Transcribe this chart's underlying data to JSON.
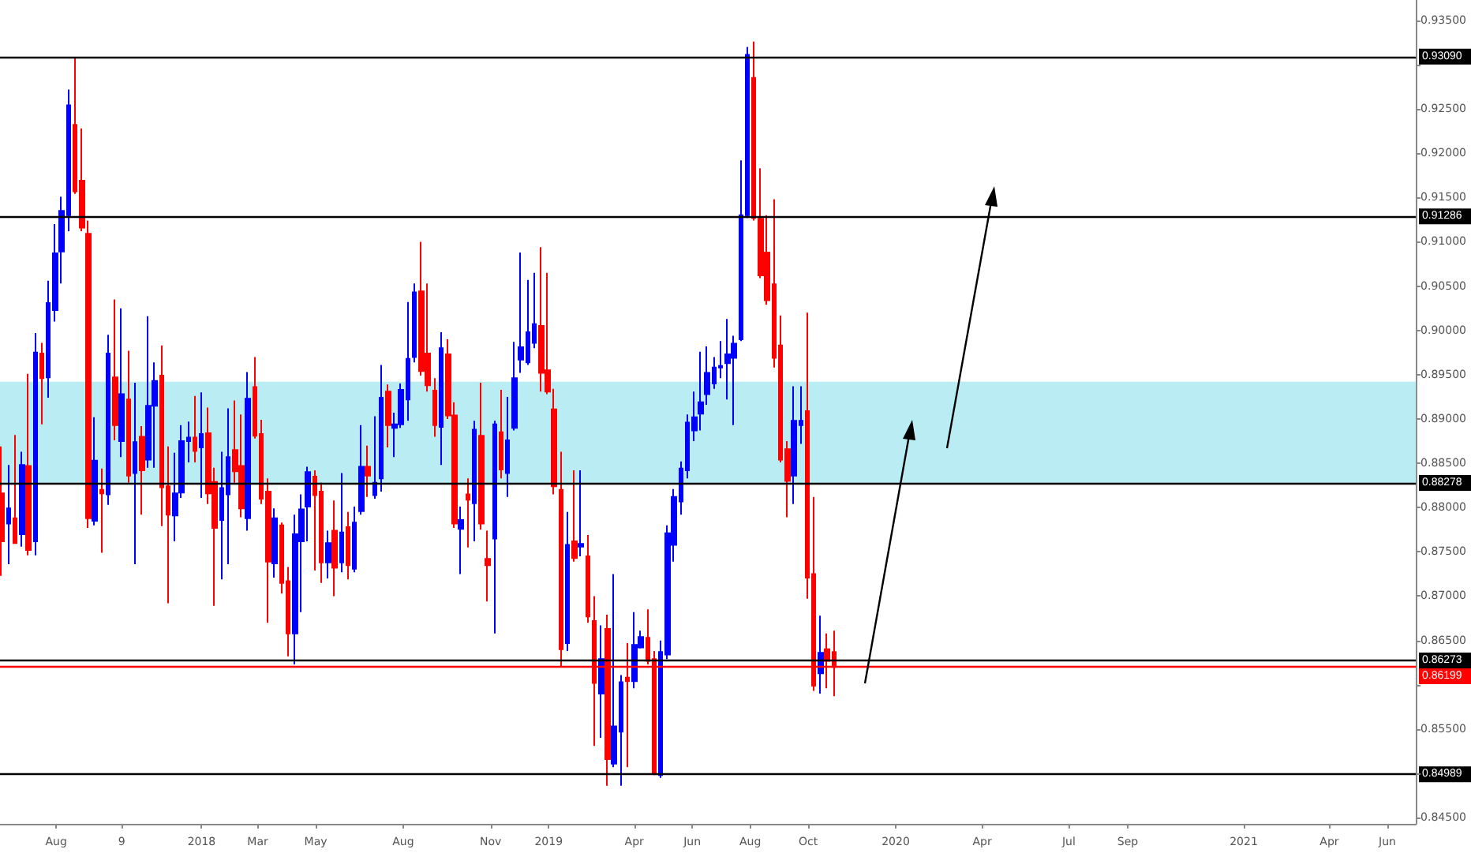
{
  "chart_data": {
    "type": "candlestick",
    "x": [
      "2017-06-05",
      "2017-06-12",
      "2017-06-19",
      "2017-06-26",
      "2017-07-03",
      "2017-07-10",
      "2017-07-17",
      "2017-07-24",
      "2017-07-31",
      "2017-08-07",
      "2017-08-14",
      "2017-08-21",
      "2017-08-28",
      "2017-09-04",
      "2017-09-11",
      "2017-09-18",
      "2017-09-25",
      "2017-10-02",
      "2017-10-09",
      "2017-10-16",
      "2017-10-23",
      "2017-10-30",
      "2017-11-06",
      "2017-11-13",
      "2017-11-20",
      "2017-11-27",
      "2017-12-04",
      "2017-12-11",
      "2017-12-18",
      "2017-12-25",
      "2018-01-01",
      "2018-01-08",
      "2018-01-15",
      "2018-01-22",
      "2018-01-29",
      "2018-02-05",
      "2018-02-12",
      "2018-02-19",
      "2018-02-26",
      "2018-03-05",
      "2018-03-12",
      "2018-03-19",
      "2018-03-26",
      "2018-04-02",
      "2018-04-09",
      "2018-04-16",
      "2018-04-23",
      "2018-04-30",
      "2018-05-07",
      "2018-05-14",
      "2018-05-21",
      "2018-05-28",
      "2018-06-04",
      "2018-06-11",
      "2018-06-18",
      "2018-06-25",
      "2018-07-02",
      "2018-07-09",
      "2018-07-16",
      "2018-07-23",
      "2018-07-30",
      "2018-08-06",
      "2018-08-13",
      "2018-08-20",
      "2018-08-27",
      "2018-09-03",
      "2018-09-10",
      "2018-09-17",
      "2018-09-24",
      "2018-10-01",
      "2018-10-08",
      "2018-10-15",
      "2018-10-22",
      "2018-10-29",
      "2018-11-05",
      "2018-11-12",
      "2018-11-19",
      "2018-11-26",
      "2018-12-03",
      "2018-12-10",
      "2018-12-17",
      "2018-12-24",
      "2018-12-31",
      "2019-01-07",
      "2019-01-14",
      "2019-01-21",
      "2019-01-28",
      "2019-02-04",
      "2019-02-11",
      "2019-02-18",
      "2019-02-25",
      "2019-03-04",
      "2019-03-11",
      "2019-03-18",
      "2019-03-25",
      "2019-04-01",
      "2019-04-08",
      "2019-04-15",
      "2019-04-22",
      "2019-04-29",
      "2019-05-06",
      "2019-05-13",
      "2019-05-20",
      "2019-05-27",
      "2019-06-03",
      "2019-06-10",
      "2019-06-17",
      "2019-06-24",
      "2019-07-01",
      "2019-07-08",
      "2019-07-15",
      "2019-07-22",
      "2019-07-29",
      "2019-08-05",
      "2019-08-12",
      "2019-08-19",
      "2019-08-26",
      "2019-09-02",
      "2019-09-09",
      "2019-09-16",
      "2019-09-23",
      "2019-09-30",
      "2019-10-07",
      "2019-10-14",
      "2019-10-21",
      "2019-10-28"
    ],
    "ohlc": [
      [
        0.8816,
        0.8869,
        0.8723,
        0.8762
      ],
      [
        0.8782,
        0.8848,
        0.8736,
        0.8799
      ],
      [
        0.8788,
        0.8882,
        0.8759,
        0.876
      ],
      [
        0.877,
        0.8863,
        0.8756,
        0.8848
      ],
      [
        0.8847,
        0.8951,
        0.8746,
        0.8752
      ],
      [
        0.8762,
        0.8997,
        0.8746,
        0.8975
      ],
      [
        0.8974,
        0.8986,
        0.8894,
        0.8946
      ],
      [
        0.8947,
        0.9056,
        0.8924,
        0.9031
      ],
      [
        0.9023,
        0.912,
        0.901,
        0.9087
      ],
      [
        0.9089,
        0.9151,
        0.9053,
        0.9135
      ],
      [
        0.913,
        0.9272,
        0.9112,
        0.9254
      ],
      [
        0.9232,
        0.9308,
        0.9154,
        0.9157
      ],
      [
        0.9169,
        0.9228,
        0.9112,
        0.9116
      ],
      [
        0.9109,
        0.9124,
        0.8777,
        0.8788
      ],
      [
        0.8785,
        0.8902,
        0.878,
        0.8853
      ],
      [
        0.882,
        0.8844,
        0.8749,
        0.8816
      ],
      [
        0.8815,
        0.8995,
        0.8803,
        0.8974
      ],
      [
        0.8947,
        0.9035,
        0.8876,
        0.8893
      ],
      [
        0.8875,
        0.9025,
        0.8857,
        0.8928
      ],
      [
        0.8922,
        0.8977,
        0.8828,
        0.8836
      ],
      [
        0.8839,
        0.8941,
        0.8736,
        0.8874
      ],
      [
        0.888,
        0.8892,
        0.8792,
        0.8842
      ],
      [
        0.8854,
        0.9016,
        0.8845,
        0.8915
      ],
      [
        0.8915,
        0.8964,
        0.8845,
        0.8943
      ],
      [
        0.8949,
        0.8983,
        0.8779,
        0.8823
      ],
      [
        0.8824,
        0.8869,
        0.8692,
        0.8792
      ],
      [
        0.8791,
        0.8862,
        0.8762,
        0.8816
      ],
      [
        0.8817,
        0.8893,
        0.8811,
        0.8875
      ],
      [
        0.8875,
        0.8897,
        0.8851,
        0.8879
      ],
      [
        0.8879,
        0.8926,
        0.8851,
        0.8864
      ],
      [
        0.8868,
        0.893,
        0.8811,
        0.8883
      ],
      [
        0.8884,
        0.8913,
        0.8804,
        0.8816
      ],
      [
        0.8829,
        0.8845,
        0.8689,
        0.8777
      ],
      [
        0.8786,
        0.8863,
        0.8719,
        0.8822
      ],
      [
        0.8815,
        0.8912,
        0.8736,
        0.8857
      ],
      [
        0.8865,
        0.8921,
        0.8828,
        0.8841
      ],
      [
        0.8847,
        0.8905,
        0.8789,
        0.8799
      ],
      [
        0.8788,
        0.8953,
        0.8774,
        0.8923
      ],
      [
        0.8936,
        0.897,
        0.8878,
        0.8881
      ],
      [
        0.8883,
        0.8899,
        0.8804,
        0.881
      ],
      [
        0.8818,
        0.8833,
        0.867,
        0.8739
      ],
      [
        0.8737,
        0.8799,
        0.8721,
        0.8788
      ],
      [
        0.878,
        0.8783,
        0.8703,
        0.8715
      ],
      [
        0.8717,
        0.8733,
        0.8632,
        0.8658
      ],
      [
        0.8658,
        0.8792,
        0.8623,
        0.877
      ],
      [
        0.8762,
        0.8815,
        0.8682,
        0.8798
      ],
      [
        0.8801,
        0.8846,
        0.8762,
        0.884
      ],
      [
        0.8835,
        0.8842,
        0.8729,
        0.8814
      ],
      [
        0.8818,
        0.8828,
        0.8715,
        0.8738
      ],
      [
        0.8738,
        0.8774,
        0.872,
        0.876
      ],
      [
        0.8774,
        0.8808,
        0.87,
        0.8732
      ],
      [
        0.8738,
        0.8839,
        0.8727,
        0.8772
      ],
      [
        0.8778,
        0.8795,
        0.8719,
        0.8735
      ],
      [
        0.8731,
        0.8801,
        0.8727,
        0.8783
      ],
      [
        0.8796,
        0.8893,
        0.8792,
        0.8846
      ],
      [
        0.8846,
        0.887,
        0.8812,
        0.8836
      ],
      [
        0.8814,
        0.8903,
        0.881,
        0.8828
      ],
      [
        0.8833,
        0.8961,
        0.8818,
        0.8924
      ],
      [
        0.8931,
        0.8939,
        0.8868,
        0.8893
      ],
      [
        0.889,
        0.8907,
        0.8857,
        0.8894
      ],
      [
        0.8894,
        0.894,
        0.889,
        0.8933
      ],
      [
        0.8922,
        0.9032,
        0.8898,
        0.8968
      ],
      [
        0.897,
        0.9053,
        0.8964,
        0.9043
      ],
      [
        0.9044,
        0.91,
        0.8949,
        0.8954
      ],
      [
        0.8974,
        0.9053,
        0.8931,
        0.8938
      ],
      [
        0.8932,
        0.8946,
        0.888,
        0.8893
      ],
      [
        0.8891,
        0.8998,
        0.8848,
        0.898
      ],
      [
        0.8973,
        0.899,
        0.89,
        0.8904
      ],
      [
        0.8904,
        0.8919,
        0.8777,
        0.8782
      ],
      [
        0.8776,
        0.8801,
        0.8725,
        0.8786
      ],
      [
        0.8815,
        0.8833,
        0.8755,
        0.8809
      ],
      [
        0.8805,
        0.8898,
        0.8762,
        0.8888
      ],
      [
        0.8881,
        0.8941,
        0.8775,
        0.8782
      ],
      [
        0.8742,
        0.8774,
        0.8694,
        0.8735
      ],
      [
        0.8765,
        0.8898,
        0.8658,
        0.8894
      ],
      [
        0.8885,
        0.8933,
        0.8833,
        0.8843
      ],
      [
        0.8839,
        0.8925,
        0.8812,
        0.8876
      ],
      [
        0.889,
        0.8987,
        0.8887,
        0.8946
      ],
      [
        0.8967,
        0.9088,
        0.8952,
        0.8981
      ],
      [
        0.8964,
        0.9057,
        0.8961,
        0.8998
      ],
      [
        0.8986,
        0.9065,
        0.898,
        0.9007
      ],
      [
        0.9005,
        0.9094,
        0.8931,
        0.8952
      ],
      [
        0.8955,
        0.9065,
        0.8928,
        0.8931
      ],
      [
        0.8911,
        0.8934,
        0.8815,
        0.8824
      ],
      [
        0.882,
        0.8863,
        0.862,
        0.864
      ],
      [
        0.8647,
        0.8795,
        0.8638,
        0.8758
      ],
      [
        0.8762,
        0.8842,
        0.8739,
        0.8743
      ],
      [
        0.8756,
        0.8842,
        0.8745,
        0.8759
      ],
      [
        0.8745,
        0.8769,
        0.867,
        0.8677
      ],
      [
        0.8672,
        0.87,
        0.8531,
        0.8602
      ],
      [
        0.859,
        0.8667,
        0.854,
        0.8629
      ],
      [
        0.8663,
        0.8679,
        0.8486,
        0.8516
      ],
      [
        0.8511,
        0.8725,
        0.8507,
        0.8553
      ],
      [
        0.8547,
        0.8611,
        0.8486,
        0.8603
      ],
      [
        0.8608,
        0.8647,
        0.8507,
        0.8604
      ],
      [
        0.8604,
        0.8682,
        0.8596,
        0.8645
      ],
      [
        0.8642,
        0.8661,
        0.8641,
        0.8654
      ],
      [
        0.8653,
        0.8685,
        0.8623,
        0.8627
      ],
      [
        0.8629,
        0.8638,
        0.8498,
        0.8501
      ],
      [
        0.8498,
        0.865,
        0.8495,
        0.8637
      ],
      [
        0.8634,
        0.878,
        0.8629,
        0.8771
      ],
      [
        0.8758,
        0.8821,
        0.8739,
        0.8812
      ],
      [
        0.8807,
        0.8852,
        0.8792,
        0.8844
      ],
      [
        0.8842,
        0.8905,
        0.8833,
        0.8896
      ],
      [
        0.8887,
        0.8931,
        0.8875,
        0.8902
      ],
      [
        0.8906,
        0.8976,
        0.8887,
        0.8919
      ],
      [
        0.8928,
        0.8982,
        0.8916,
        0.8952
      ],
      [
        0.894,
        0.897,
        0.8934,
        0.8958
      ],
      [
        0.8958,
        0.8988,
        0.8946,
        0.896
      ],
      [
        0.8963,
        0.9013,
        0.8922,
        0.8973
      ],
      [
        0.8969,
        0.8994,
        0.8893,
        0.8985
      ],
      [
        0.899,
        0.9192,
        0.8988,
        0.913
      ],
      [
        0.913,
        0.932,
        0.9127,
        0.9311
      ],
      [
        0.9285,
        0.9326,
        0.9124,
        0.9127
      ],
      [
        0.9126,
        0.9183,
        0.9059,
        0.9062
      ],
      [
        0.9088,
        0.913,
        0.9029,
        0.9034
      ],
      [
        0.9052,
        0.9148,
        0.8958,
        0.8969
      ],
      [
        0.8983,
        0.9017,
        0.8851,
        0.8854
      ],
      [
        0.8866,
        0.8875,
        0.8789,
        0.883
      ],
      [
        0.8836,
        0.8937,
        0.8804,
        0.8898
      ],
      [
        0.8893,
        0.8937,
        0.8872,
        0.8898
      ],
      [
        0.8909,
        0.902,
        0.8697,
        0.8721
      ],
      [
        0.8725,
        0.8812,
        0.8593,
        0.8599
      ],
      [
        0.8613,
        0.8678,
        0.859,
        0.8636
      ],
      [
        0.864,
        0.8658,
        0.8596,
        0.8627
      ],
      [
        0.8637,
        0.8661,
        0.8587,
        0.862
      ]
    ],
    "colors": [
      "#ff0000",
      "#0000ff",
      "#ff0000",
      "#0000ff",
      "#ff0000",
      "#0000ff",
      "#ff0000",
      "#0000ff",
      "#0000ff",
      "#0000ff",
      "#0000ff",
      "#ff0000",
      "#ff0000",
      "#ff0000",
      "#0000ff",
      "#ff0000",
      "#0000ff",
      "#ff0000",
      "#0000ff",
      "#ff0000",
      "#0000ff",
      "#ff0000",
      "#0000ff",
      "#0000ff",
      "#ff0000",
      "#ff0000",
      "#0000ff",
      "#0000ff",
      "#0000ff",
      "#ff0000",
      "#0000ff",
      "#ff0000",
      "#ff0000",
      "#0000ff",
      "#0000ff",
      "#ff0000",
      "#ff0000",
      "#0000ff",
      "#ff0000",
      "#ff0000",
      "#ff0000",
      "#0000ff",
      "#ff0000",
      "#ff0000",
      "#0000ff",
      "#0000ff",
      "#0000ff",
      "#ff0000",
      "#ff0000",
      "#0000ff",
      "#ff0000",
      "#0000ff",
      "#ff0000",
      "#0000ff",
      "#0000ff",
      "#ff0000",
      "#0000ff",
      "#0000ff",
      "#ff0000",
      "#0000ff",
      "#0000ff",
      "#0000ff",
      "#0000ff",
      "#ff0000",
      "#ff0000",
      "#ff0000",
      "#0000ff",
      "#ff0000",
      "#ff0000",
      "#0000ff",
      "#ff0000",
      "#0000ff",
      "#ff0000",
      "#ff0000",
      "#0000ff",
      "#ff0000",
      "#0000ff",
      "#0000ff",
      "#0000ff",
      "#0000ff",
      "#0000ff",
      "#ff0000",
      "#ff0000",
      "#ff0000",
      "#ff0000",
      "#0000ff",
      "#ff0000",
      "#0000ff",
      "#ff0000",
      "#ff0000",
      "#0000ff",
      "#ff0000",
      "#0000ff",
      "#0000ff",
      "#ff0000",
      "#0000ff",
      "#0000ff",
      "#ff0000",
      "#ff0000",
      "#0000ff",
      "#0000ff",
      "#0000ff",
      "#0000ff",
      "#0000ff",
      "#0000ff",
      "#0000ff",
      "#0000ff",
      "#0000ff",
      "#0000ff",
      "#0000ff",
      "#0000ff",
      "#0000ff",
      "#0000ff",
      "#ff0000",
      "#ff0000",
      "#ff0000",
      "#ff0000",
      "#ff0000",
      "#ff0000",
      "#0000ff",
      "#0000ff",
      "#ff0000",
      "#ff0000",
      "#0000ff",
      "#ff0000",
      "#ff0000"
    ],
    "xlim": [
      "2017-06-03",
      "2021-07-01"
    ],
    "xticks": [
      {
        "value": "2017-08-01",
        "label": "Aug"
      },
      {
        "value": "2017-10-09",
        "label": "9"
      },
      {
        "value": "2018-01-01",
        "label": "2018"
      },
      {
        "value": "2018-03-01",
        "label": "Mar"
      },
      {
        "value": "2018-05-01",
        "label": "May"
      },
      {
        "value": "2018-08-01",
        "label": "Aug"
      },
      {
        "value": "2018-11-01",
        "label": "Nov"
      },
      {
        "value": "2019-01-01",
        "label": "2019"
      },
      {
        "value": "2019-04-01",
        "label": "Apr"
      },
      {
        "value": "2019-06-01",
        "label": "Jun"
      },
      {
        "value": "2019-08-01",
        "label": "Aug"
      },
      {
        "value": "2019-10-01",
        "label": "Oct"
      },
      {
        "value": "2020-01-01",
        "label": "2020"
      },
      {
        "value": "2020-04-01",
        "label": "Apr"
      },
      {
        "value": "2020-07-01",
        "label": "Jul"
      },
      {
        "value": "2020-09-01",
        "label": "Sep"
      },
      {
        "value": "2021-01-01",
        "label": "2021"
      },
      {
        "value": "2021-04-01",
        "label": "Apr"
      },
      {
        "value": "2021-06-01",
        "label": "Jun"
      }
    ],
    "ylim": [
      0.8443,
      0.9373
    ],
    "yticks": [
      {
        "value": 0.845,
        "label": "0.84500"
      },
      {
        "value": 0.85,
        "label": null
      },
      {
        "value": 0.855,
        "label": "0.85500"
      },
      {
        "value": 0.86,
        "label": null
      },
      {
        "value": 0.865,
        "label": "0.86500"
      },
      {
        "value": 0.87,
        "label": "0.87000"
      },
      {
        "value": 0.875,
        "label": "0.87500"
      },
      {
        "value": 0.88,
        "label": "0.88000"
      },
      {
        "value": 0.885,
        "label": "0.88500"
      },
      {
        "value": 0.89,
        "label": "0.89000"
      },
      {
        "value": 0.895,
        "label": "0.89500"
      },
      {
        "value": 0.9,
        "label": "0.90000"
      },
      {
        "value": 0.905,
        "label": "0.90500"
      },
      {
        "value": 0.91,
        "label": "0.91000"
      },
      {
        "value": 0.915,
        "label": "0.91500"
      },
      {
        "value": 0.92,
        "label": "0.92000"
      },
      {
        "value": 0.925,
        "label": "0.92500"
      },
      {
        "value": 0.93,
        "label": null
      },
      {
        "value": 0.935,
        "label": "0.93500"
      }
    ],
    "ref_lines": [
      {
        "axis": "y",
        "value": 0.9309,
        "label": "0.93090",
        "color": "#000000",
        "line_style": "solid"
      },
      {
        "axis": "y",
        "value": 0.91286,
        "label": "0.91286",
        "color": "#000000",
        "line_style": "solid"
      },
      {
        "axis": "y",
        "value": 0.88278,
        "label": "0.88278",
        "color": "#000000",
        "line_style": "solid"
      },
      {
        "axis": "y",
        "value": 0.86273,
        "label": "0.86273",
        "color": "#000000",
        "line_style": "solid"
      },
      {
        "axis": "y",
        "value": 0.86199,
        "label": "0.86199",
        "color": "#ff0000",
        "line_style": "solid"
      },
      {
        "axis": "y",
        "value": 0.84989,
        "label": "0.84989",
        "color": "#000000",
        "line_style": "solid"
      }
    ],
    "bands": [
      {
        "axis": "y",
        "from": 0.88278,
        "to": 0.8942,
        "color": "#b2ebf2"
      }
    ]
  }
}
